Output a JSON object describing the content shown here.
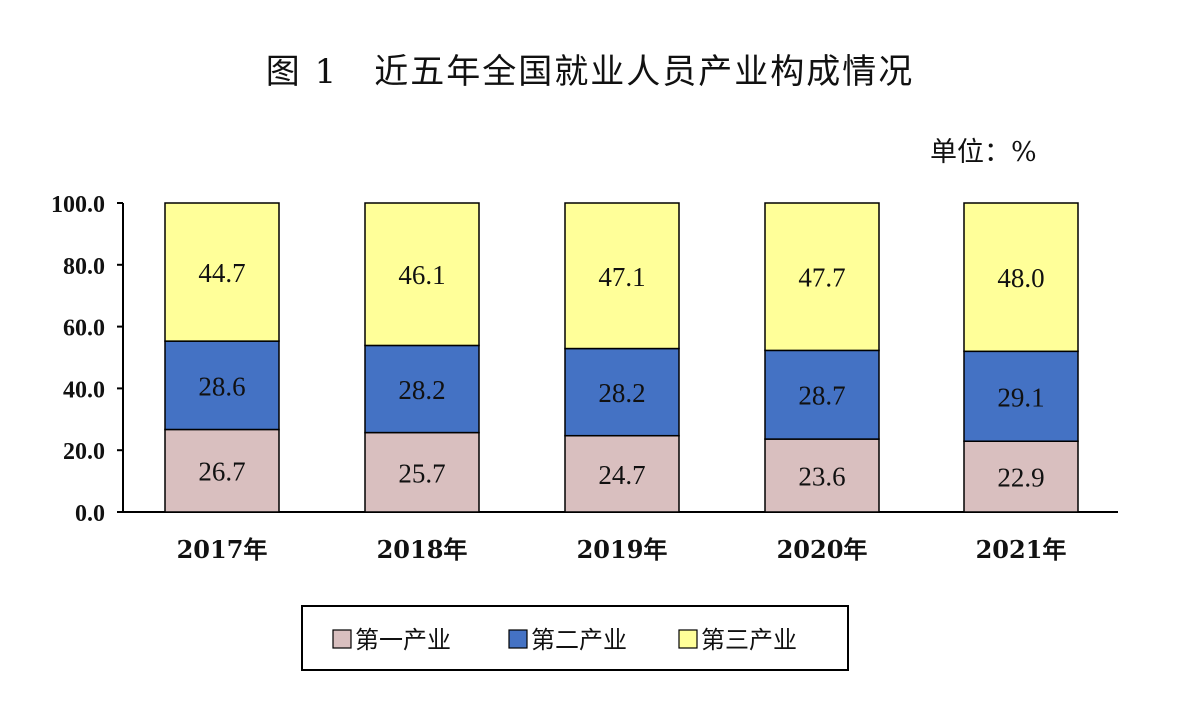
{
  "chart_data": {
    "type": "bar",
    "stacked": true,
    "title": "图 1　近五年全国就业人员产业构成情况",
    "unit": "单位：%",
    "categories": [
      "2017年",
      "2018年",
      "2019年",
      "2020年",
      "2021年"
    ],
    "ylim": [
      0,
      100
    ],
    "yticks": [
      "0.0",
      "20.0",
      "40.0",
      "60.0",
      "80.0",
      "100.0"
    ],
    "grid": false,
    "legend_position": "bottom",
    "series": [
      {
        "name": "第一产业",
        "color": "#d9bfbf",
        "values": [
          26.7,
          25.7,
          24.7,
          23.6,
          22.9
        ]
      },
      {
        "name": "第二产业",
        "color": "#4472c4",
        "values": [
          28.6,
          28.2,
          28.2,
          28.7,
          29.1
        ]
      },
      {
        "name": "第三产业",
        "color": "#ffff99",
        "values": [
          44.7,
          46.1,
          47.1,
          47.7,
          48.0
        ]
      }
    ]
  }
}
